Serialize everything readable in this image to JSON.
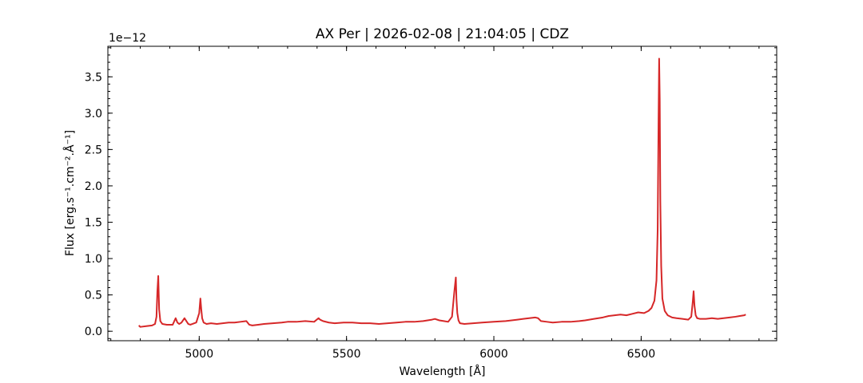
{
  "chart_data": {
    "type": "line",
    "title": "AX Per | 2026-02-08 | 21:04:05 | CDZ",
    "xlabel": "Wavelength [Å]",
    "ylabel": "Flux [erg.s⁻¹.cm⁻².Å⁻¹]",
    "y_offset_label": "1e−12",
    "xlim": [
      4690,
      6960
    ],
    "ylim": [
      -0.13,
      3.92
    ],
    "y_scale_factor": 1e-12,
    "xticks": [
      5000,
      5500,
      6000,
      6500
    ],
    "xtick_labels": [
      "5000",
      "5500",
      "6000",
      "6500"
    ],
    "yticks": [
      0.0,
      0.5,
      1.0,
      1.5,
      2.0,
      2.5,
      3.0,
      3.5
    ],
    "ytick_labels": [
      "0.0",
      "0.5",
      "1.0",
      "1.5",
      "2.0",
      "2.5",
      "3.0",
      "3.5"
    ],
    "grid": false,
    "legend": "none",
    "line_color": "#d62728",
    "series": [
      {
        "x": [
          4795,
          4800,
          4820,
          4840,
          4850,
          4855,
          4858,
          4861,
          4864,
          4868,
          4875,
          4890,
          4910,
          4920,
          4926,
          4932,
          4940,
          4950,
          4958,
          4963,
          4970,
          4990,
          5000,
          5004,
          5007,
          5010,
          5015,
          5025,
          5040,
          5060,
          5080,
          5100,
          5120,
          5140,
          5160,
          5170,
          5180,
          5200,
          5220,
          5250,
          5280,
          5300,
          5330,
          5360,
          5390,
          5405,
          5410,
          5420,
          5440,
          5460,
          5490,
          5520,
          5550,
          5580,
          5610,
          5640,
          5670,
          5700,
          5730,
          5760,
          5790,
          5800,
          5815,
          5830,
          5845,
          5858,
          5866,
          5871,
          5873,
          5876,
          5880,
          5885,
          5900,
          5930,
          5960,
          6000,
          6040,
          6080,
          6100,
          6120,
          6140,
          6150,
          6160,
          6180,
          6200,
          6230,
          6260,
          6290,
          6310,
          6340,
          6370,
          6390,
          6410,
          6430,
          6450,
          6470,
          6490,
          6510,
          6525,
          6535,
          6545,
          6552,
          6556,
          6559,
          6561,
          6563,
          6565,
          6568,
          6572,
          6580,
          6590,
          6605,
          6620,
          6640,
          6660,
          6670,
          6675,
          6678,
          6681,
          6685,
          6690,
          6700,
          6720,
          6740,
          6760,
          6780,
          6800,
          6820,
          6835,
          6850,
          6855
        ],
        "values": [
          0.08,
          0.06,
          0.07,
          0.08,
          0.1,
          0.2,
          0.55,
          0.76,
          0.3,
          0.14,
          0.1,
          0.09,
          0.09,
          0.18,
          0.12,
          0.1,
          0.12,
          0.18,
          0.13,
          0.1,
          0.09,
          0.12,
          0.25,
          0.45,
          0.3,
          0.18,
          0.12,
          0.1,
          0.11,
          0.1,
          0.11,
          0.12,
          0.12,
          0.13,
          0.14,
          0.09,
          0.08,
          0.09,
          0.1,
          0.11,
          0.12,
          0.13,
          0.13,
          0.14,
          0.13,
          0.18,
          0.16,
          0.14,
          0.12,
          0.11,
          0.12,
          0.12,
          0.11,
          0.11,
          0.1,
          0.11,
          0.12,
          0.13,
          0.13,
          0.14,
          0.16,
          0.17,
          0.15,
          0.14,
          0.13,
          0.2,
          0.55,
          0.74,
          0.45,
          0.25,
          0.15,
          0.11,
          0.1,
          0.11,
          0.12,
          0.13,
          0.14,
          0.16,
          0.17,
          0.18,
          0.19,
          0.18,
          0.14,
          0.13,
          0.12,
          0.13,
          0.13,
          0.14,
          0.15,
          0.17,
          0.19,
          0.21,
          0.22,
          0.23,
          0.22,
          0.24,
          0.26,
          0.25,
          0.28,
          0.32,
          0.42,
          0.7,
          1.4,
          2.9,
          3.75,
          3.2,
          1.8,
          0.9,
          0.45,
          0.28,
          0.22,
          0.19,
          0.18,
          0.17,
          0.16,
          0.2,
          0.4,
          0.55,
          0.35,
          0.22,
          0.18,
          0.17,
          0.17,
          0.18,
          0.17,
          0.18,
          0.19,
          0.2,
          0.21,
          0.22,
          0.23
        ]
      }
    ]
  }
}
